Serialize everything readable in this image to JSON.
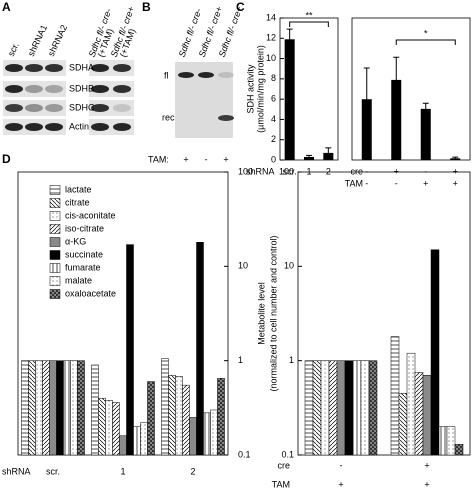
{
  "panel_labels": [
    "A",
    "B",
    "C",
    "D"
  ],
  "panel_a": {
    "lanes": [
      "scr.",
      "shRNA1",
      "shRNA2"
    ],
    "lanes_sdhc": [
      [
        "Sdhc fl/- cre-",
        "(+TAM)"
      ],
      [
        "Sdhc fl/- cre+",
        "(+TAM)"
      ]
    ],
    "proteins": [
      "SDHA",
      "SDHB",
      "SDHC",
      "Actin"
    ]
  },
  "panel_b": {
    "lanes": [
      "Sdhc fl/- cre-",
      "Sdhc fl/- cre+",
      "Sdhc fl/- cre+"
    ],
    "bands": [
      "fl",
      "rec"
    ],
    "tam_label": "TAM:",
    "tam": [
      "+",
      "-",
      "+"
    ]
  },
  "chart_data": [
    {
      "type": "bar",
      "ylabel": [
        "SDH activity",
        "(µmol/min/mg protein)"
      ],
      "group_label": "shRNA",
      "categories": [
        "scr.",
        "1",
        "2"
      ],
      "values": [
        11.9,
        0.3,
        0.7
      ],
      "errors": [
        1.0,
        0.15,
        0.5
      ],
      "color": "#000000",
      "ylim": [
        0,
        14
      ],
      "yticks": [
        0,
        2,
        4,
        6,
        8,
        10,
        12,
        14
      ],
      "significance": "**"
    },
    {
      "type": "bar",
      "rows": [
        {
          "name": "cre",
          "labels": [
            "-",
            "+",
            "-",
            "+"
          ]
        },
        {
          "name": "TAM",
          "labels": [
            "-",
            "-",
            "+",
            "+"
          ]
        }
      ],
      "values": [
        10.7,
        14.1,
        9.0,
        0.3
      ],
      "errors": [
        5.5,
        4.0,
        1.0,
        0.2
      ],
      "color": "#000000",
      "ylim": [
        0,
        25
      ],
      "significance": "*"
    },
    {
      "type": "bar",
      "log": true,
      "group_label": "shRNA",
      "categories": [
        "scr.",
        "1",
        "2"
      ],
      "ylim": [
        0.1,
        100
      ],
      "yticks": [
        0.1,
        1,
        10,
        100
      ],
      "series": [
        {
          "name": "lactate",
          "color": "#000000",
          "pattern": "hlines",
          "values": [
            1,
            0.9,
            1.05
          ]
        },
        {
          "name": "citrate",
          "color": "#000000",
          "pattern": "diag-left",
          "values": [
            1,
            0.4,
            0.7
          ]
        },
        {
          "name": "cis-aconitate",
          "color": "#000000",
          "pattern": "dots",
          "values": [
            1,
            0.38,
            0.68
          ]
        },
        {
          "name": "iso-citrate",
          "color": "#000000",
          "pattern": "diag-right",
          "values": [
            1,
            0.36,
            0.55
          ]
        },
        {
          "name": "α-KG",
          "color": "#8a8a8a",
          "pattern": "solid",
          "values": [
            1,
            0.16,
            0.25
          ]
        },
        {
          "name": "succinate",
          "color": "#000000",
          "pattern": "solid",
          "values": [
            1,
            17,
            18
          ]
        },
        {
          "name": "fumarate",
          "color": "#000000",
          "pattern": "vlines",
          "values": [
            1,
            0.2,
            0.28
          ]
        },
        {
          "name": "malate",
          "color": "#000000",
          "pattern": "dots",
          "values": [
            1,
            0.22,
            0.3
          ]
        },
        {
          "name": "oxaloacetate",
          "color": "#333333",
          "pattern": "dense-dots",
          "values": [
            1,
            0.6,
            0.65
          ]
        }
      ]
    },
    {
      "type": "bar",
      "log": true,
      "ylabel": [
        "Metabolite level",
        "(normalized to cell number and control)"
      ],
      "rows": [
        {
          "name": "cre",
          "labels": [
            "-",
            "+"
          ]
        },
        {
          "name": "TAM",
          "labels": [
            "+",
            "+"
          ]
        }
      ],
      "ylim": [
        0.1,
        100
      ],
      "yticks": [
        0.1,
        1,
        10,
        100
      ],
      "series": [
        {
          "color": "#000000",
          "pattern": "hlines",
          "values": [
            1,
            1.8
          ]
        },
        {
          "color": "#000000",
          "pattern": "diag-left",
          "values": [
            1,
            0.45
          ]
        },
        {
          "color": "#000000",
          "pattern": "dots",
          "values": [
            1,
            1.2
          ]
        },
        {
          "color": "#000000",
          "pattern": "diag-right",
          "values": [
            1,
            0.75
          ]
        },
        {
          "color": "#8a8a8a",
          "pattern": "solid",
          "values": [
            1,
            0.7
          ]
        },
        {
          "color": "#000000",
          "pattern": "solid",
          "values": [
            1,
            15
          ]
        },
        {
          "color": "#000000",
          "pattern": "vlines",
          "values": [
            1,
            0.2
          ]
        },
        {
          "color": "#000000",
          "pattern": "dots",
          "values": [
            1,
            0.2
          ]
        },
        {
          "color": "#333333",
          "pattern": "dense-dots",
          "values": [
            1,
            0.13
          ]
        }
      ]
    }
  ]
}
